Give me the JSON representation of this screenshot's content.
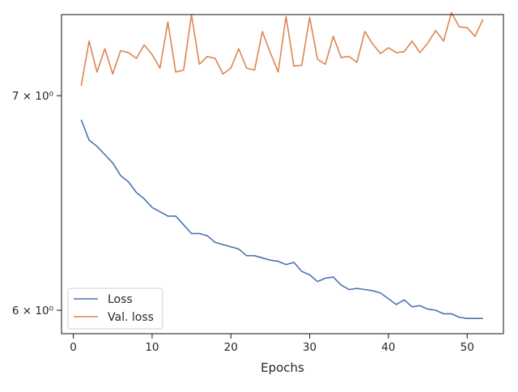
{
  "chart_data": {
    "type": "line",
    "title": "",
    "xlabel": "Epochs",
    "ylabel": "",
    "yscale": "log",
    "xlim": [
      -1.5,
      54.6
    ],
    "ylim": [
      5.9,
      7.42
    ],
    "x_ticks": [
      {
        "value": 0,
        "label": "0"
      },
      {
        "value": 10,
        "label": "10"
      },
      {
        "value": 20,
        "label": "20"
      },
      {
        "value": 30,
        "label": "30"
      },
      {
        "value": 40,
        "label": "40"
      },
      {
        "value": 50,
        "label": "50"
      }
    ],
    "y_ticks": [
      {
        "value": 6,
        "label": "6 × 10⁰"
      },
      {
        "value": 7,
        "label": "7 × 10⁰"
      }
    ],
    "grid": false,
    "legend_position": "lower-left",
    "x": [
      1,
      2,
      3,
      4,
      5,
      6,
      7,
      8,
      9,
      10,
      11,
      12,
      13,
      14,
      15,
      16,
      17,
      18,
      19,
      20,
      21,
      22,
      23,
      24,
      25,
      26,
      27,
      28,
      29,
      30,
      31,
      32,
      33,
      34,
      35,
      36,
      37,
      38,
      39,
      40,
      41,
      42,
      43,
      44,
      45,
      46,
      47,
      48,
      49,
      50,
      51,
      52
    ],
    "series": [
      {
        "name": "Loss",
        "color": "#4c72b0",
        "values": [
          6.88,
          6.78,
          6.75,
          6.71,
          6.67,
          6.61,
          6.58,
          6.53,
          6.5,
          6.46,
          6.44,
          6.42,
          6.42,
          6.38,
          6.34,
          6.34,
          6.33,
          6.3,
          6.29,
          6.28,
          6.27,
          6.24,
          6.24,
          6.23,
          6.22,
          6.215,
          6.2,
          6.21,
          6.17,
          6.155,
          6.125,
          6.14,
          6.145,
          6.11,
          6.09,
          6.095,
          6.09,
          6.085,
          6.075,
          6.05,
          6.025,
          6.045,
          6.015,
          6.02,
          6.005,
          6.0,
          5.985,
          5.985,
          5.97,
          5.965,
          5.965,
          5.965
        ]
      },
      {
        "name": "Val. loss",
        "color": "#dd8452",
        "values": [
          7.05,
          7.28,
          7.12,
          7.24,
          7.11,
          7.23,
          7.22,
          7.19,
          7.26,
          7.21,
          7.14,
          7.38,
          7.12,
          7.13,
          7.42,
          7.16,
          7.2,
          7.19,
          7.11,
          7.14,
          7.24,
          7.14,
          7.13,
          7.33,
          7.22,
          7.12,
          7.41,
          7.15,
          7.155,
          7.405,
          7.185,
          7.16,
          7.305,
          7.195,
          7.2,
          7.17,
          7.33,
          7.265,
          7.215,
          7.245,
          7.22,
          7.225,
          7.28,
          7.22,
          7.27,
          7.335,
          7.28,
          7.43,
          7.355,
          7.35,
          7.305,
          7.395
        ]
      }
    ]
  }
}
